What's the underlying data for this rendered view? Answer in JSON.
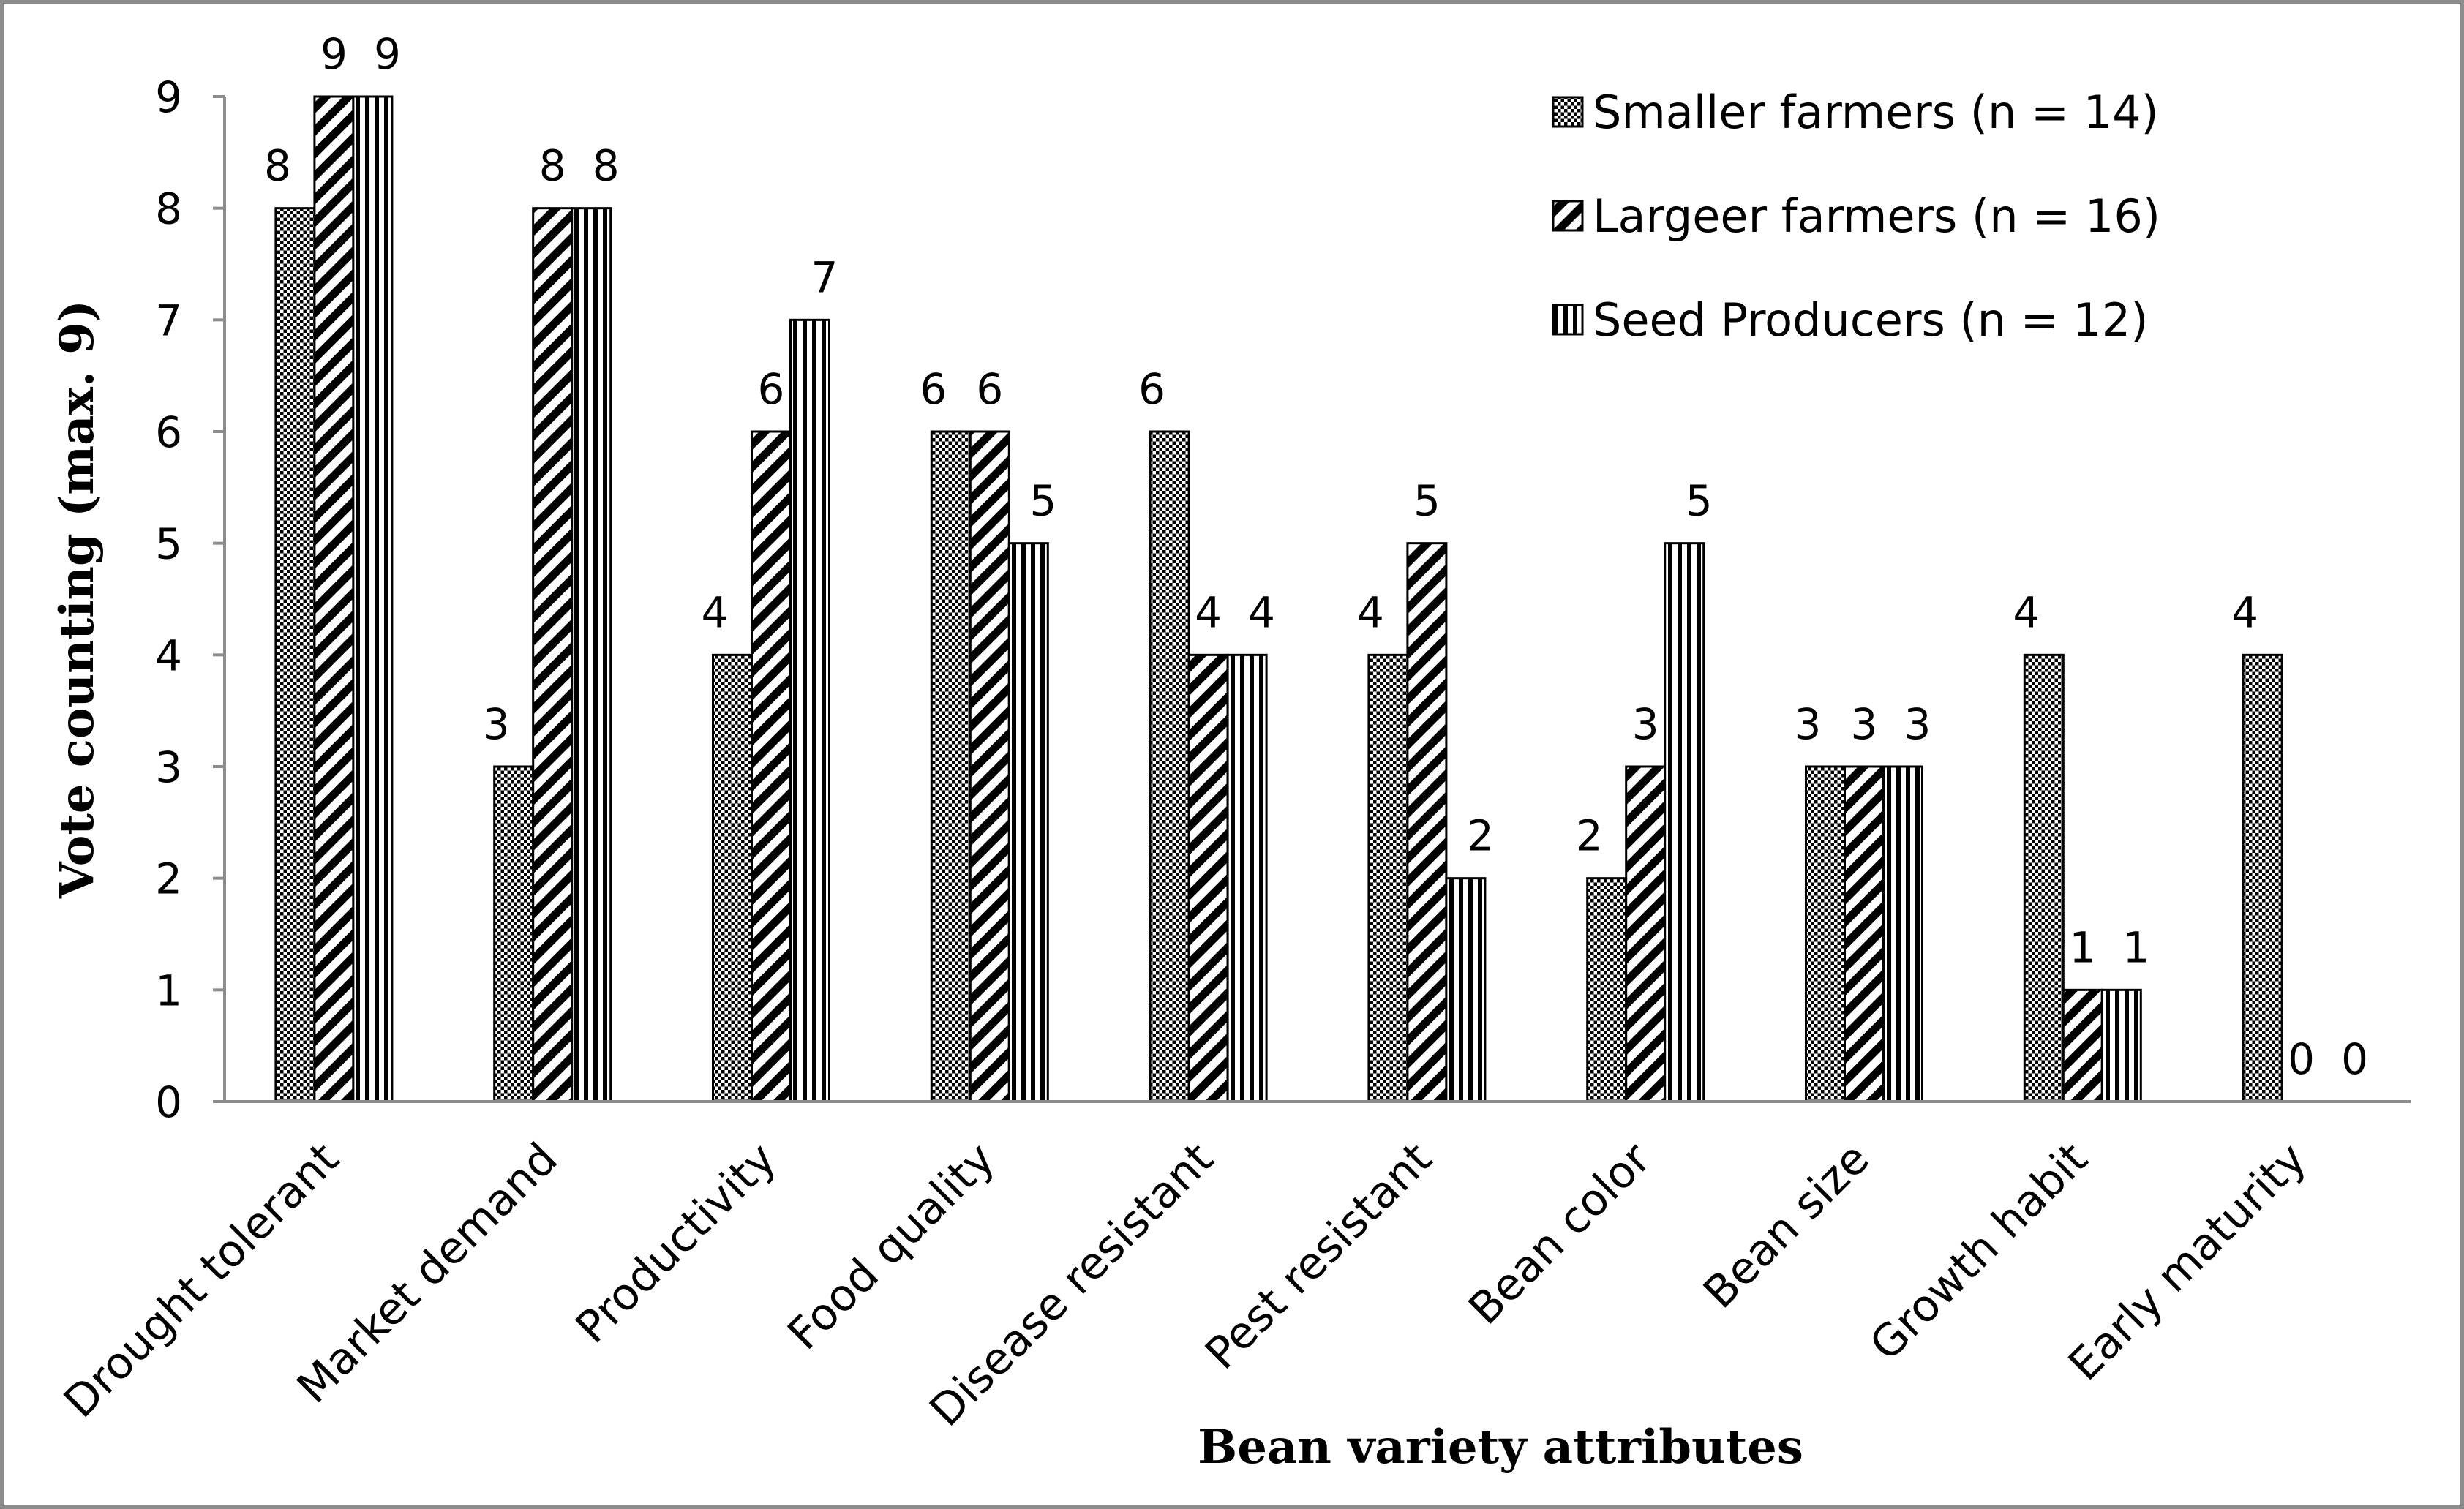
{
  "chart_data": {
    "type": "bar",
    "title": "",
    "xlabel": "Bean variety attributes",
    "ylabel": "Vote counting (max. 9)",
    "ylim": [
      0,
      9
    ],
    "yticks": [
      0,
      1,
      2,
      3,
      4,
      5,
      6,
      7,
      8,
      9
    ],
    "grid": false,
    "legend_position": "top-right",
    "categories": [
      "Drought tolerant",
      "Market demand",
      "Productivity",
      "Food quality",
      "Disease resistant",
      "Pest resistant",
      "Bean color",
      "Bean size",
      "Growth habit",
      "Early maturity"
    ],
    "series": [
      {
        "name": "Smaller farmers (n = 14)",
        "pattern": "dots",
        "values": [
          8,
          3,
          4,
          6,
          6,
          4,
          2,
          3,
          4,
          4
        ]
      },
      {
        "name": "Largeer farmers (n = 16)",
        "pattern": "diagonal",
        "values": [
          9,
          8,
          6,
          6,
          4,
          5,
          3,
          3,
          1,
          0
        ]
      },
      {
        "name": "Seed Producers (n = 12)",
        "pattern": "vertical",
        "values": [
          9,
          8,
          7,
          5,
          4,
          2,
          5,
          3,
          1,
          0
        ]
      }
    ],
    "colors": {
      "frame": "#8c8c8c",
      "axis": "#8c8c8c",
      "bar_stroke": "#000000",
      "fill": "#000000"
    }
  }
}
